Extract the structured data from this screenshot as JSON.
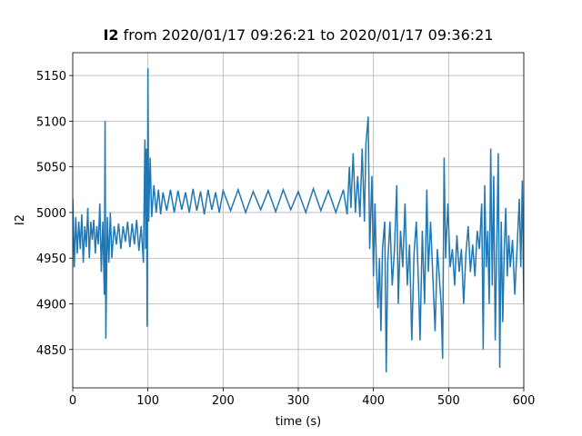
{
  "chart_data": {
    "type": "line",
    "title_bold": "I2",
    "title": "from 2020/01/17 09:26:21 to 2020/01/17 09:36:21",
    "xlabel": "time (s)",
    "ylabel": "I2",
    "xlim": [
      0,
      600
    ],
    "ylim": [
      4808,
      5175
    ],
    "xticks": [
      0,
      100,
      200,
      300,
      400,
      500,
      600
    ],
    "yticks": [
      4850,
      4900,
      4950,
      5000,
      5050,
      5100,
      5150
    ],
    "grid": true,
    "x": [
      0,
      2,
      4,
      6,
      8,
      10,
      12,
      14,
      16,
      18,
      20,
      22,
      24,
      26,
      28,
      30,
      32,
      34,
      36,
      38,
      40,
      42,
      43,
      44,
      46,
      48,
      50,
      52,
      55,
      58,
      61,
      64,
      67,
      70,
      73,
      76,
      79,
      82,
      85,
      88,
      91,
      94,
      96,
      97,
      98,
      99,
      100,
      101,
      103,
      105,
      108,
      111,
      114,
      117,
      120,
      125,
      130,
      135,
      140,
      145,
      150,
      155,
      160,
      165,
      170,
      175,
      180,
      185,
      190,
      195,
      200,
      210,
      220,
      230,
      240,
      250,
      260,
      270,
      280,
      290,
      300,
      310,
      320,
      330,
      340,
      350,
      360,
      365,
      368,
      370,
      373,
      376,
      379,
      382,
      385,
      388,
      390,
      393,
      395,
      398,
      400,
      402,
      404,
      406,
      408,
      410,
      412,
      415,
      417,
      419,
      422,
      425,
      428,
      431,
      433,
      436,
      439,
      442,
      445,
      448,
      451,
      454,
      457,
      460,
      462,
      465,
      468,
      471,
      473,
      476,
      479,
      482,
      485,
      488,
      490,
      492,
      494,
      496,
      499,
      502,
      505,
      508,
      511,
      514,
      517,
      520,
      523,
      526,
      529,
      532,
      535,
      538,
      541,
      544,
      546,
      548,
      550,
      552,
      554,
      556,
      558,
      560,
      562,
      564,
      566,
      568,
      570,
      572,
      574,
      576,
      578,
      580,
      582,
      585,
      588,
      591,
      594,
      596,
      598,
      600
    ],
    "series": [
      {
        "name": "I2",
        "color": "#1f77b4",
        "values": [
          5015,
          4940,
          4995,
          4955,
          4990,
          4960,
          4998,
          4945,
          4985,
          4962,
          5005,
          4950,
          4990,
          4970,
          4992,
          4955,
          4985,
          4965,
          5010,
          4935,
          4990,
          4910,
          5100,
          4862,
          4995,
          4945,
          5000,
          4950,
          4985,
          4965,
          4988,
          4960,
          4985,
          4968,
          4990,
          4962,
          4988,
          4965,
          4992,
          4958,
          4985,
          4945,
          5080,
          4960,
          5070,
          4875,
          5158,
          4990,
          5060,
          4995,
          5030,
          5000,
          5025,
          4998,
          5022,
          5002,
          5025,
          5000,
          5024,
          5003,
          5022,
          5000,
          5026,
          5002,
          5023,
          4998,
          5025,
          5003,
          5022,
          5000,
          5024,
          5002,
          5025,
          5000,
          5023,
          5003,
          5024,
          5001,
          5025,
          5003,
          5023,
          5000,
          5026,
          5002,
          5024,
          5000,
          5025,
          4998,
          5050,
          5005,
          5065,
          5000,
          5040,
          4995,
          5070,
          4990,
          5075,
          5105,
          4960,
          5040,
          4930,
          5010,
          4940,
          4895,
          4950,
          4870,
          4960,
          4990,
          4825,
          4945,
          4990,
          4920,
          4960,
          5030,
          4900,
          4980,
          4940,
          5010,
          4920,
          4965,
          4860,
          4955,
          4990,
          4920,
          4860,
          4980,
          4900,
          5025,
          4935,
          4990,
          4930,
          4870,
          4960,
          4925,
          4900,
          4840,
          5060,
          4950,
          5010,
          4940,
          4960,
          4920,
          4975,
          4935,
          4960,
          4900,
          4955,
          4985,
          4935,
          4965,
          4930,
          4980,
          4960,
          5010,
          4850,
          5030,
          4940,
          4980,
          4900,
          5070,
          4920,
          5040,
          4860,
          4960,
          5065,
          4830,
          4990,
          4880,
          4960,
          5005,
          4930,
          4975,
          4940,
          4970,
          4910,
          4960,
          5015,
          4940,
          5035,
          4900
        ]
      }
    ]
  }
}
